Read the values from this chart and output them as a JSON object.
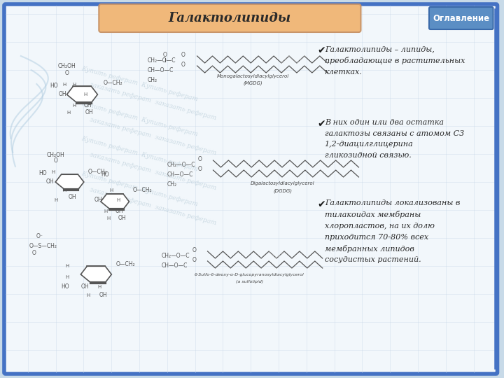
{
  "title": "Галактолипиды",
  "nav_button": "Оглавление",
  "bg_outer": "#c8dae8",
  "bg_inner": "#f2f7fb",
  "title_bg": "#f0b87a",
  "title_border": "#c8956a",
  "nav_bg": "#5b8ec4",
  "nav_border": "#3a6aaa",
  "nav_text_color": "#ffffff",
  "title_text_color": "#2a2a2a",
  "grid_color": "#c8d8e8",
  "watermark_color": "#b8ccd8",
  "struct_color": "#555555",
  "label_color": "#444444",
  "text_color": "#2a2a2a",
  "bullet1": "Галактолипиды – липиды,\nпреобладающие в растительных\nклетках.",
  "bullet2": "В них один или два остатка\nгалактозы связаны с атомом С3\n1,2-диацилглицерина\nгликозидной связью.",
  "bullet3": "Галактолипиды локализованы в\nтилакоидах мембраны\nхлоропластов, на их долю\nприходится 70-80% всех\nмембранных липидов\nсосудистых растений.",
  "struct1_label1": "Monogalactosyldiacylglycerol",
  "struct1_label2": "(MGDG)",
  "struct2_label1": "Digalactosyldiacylglycerol",
  "struct2_label2": "(DGDG)",
  "struct3_label1": "6-Sulfo-6-deoxy-α-D-glucopyranosyldiacylglycerol",
  "struct3_label2": "(a sulfolipid)",
  "border_blue": "#4472c4",
  "decor_blue": "#b0cce0"
}
